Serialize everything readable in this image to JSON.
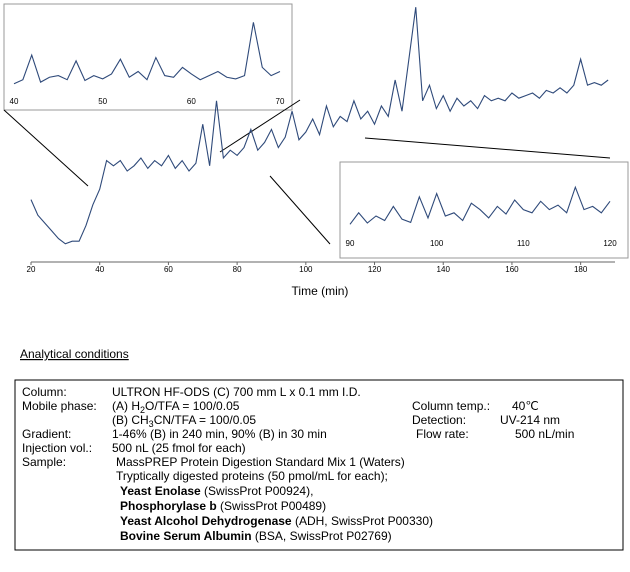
{
  "chart_data": [
    {
      "type": "line",
      "x_label": "Time (min)",
      "color": "#2f4a7a",
      "x": [
        20,
        22,
        24,
        26,
        28,
        30,
        32,
        34,
        36,
        38,
        40,
        42,
        44,
        46,
        48,
        50,
        52,
        54,
        56,
        58,
        60,
        62,
        64,
        66,
        68,
        70,
        72,
        74,
        76,
        78,
        80,
        82,
        84,
        86,
        88,
        90,
        92,
        94,
        96,
        98,
        100,
        102,
        104,
        106,
        108,
        110,
        112,
        114,
        116,
        118,
        120,
        122,
        124,
        126,
        128,
        130,
        132,
        134,
        136,
        138,
        140,
        142,
        144,
        146,
        148,
        150,
        152,
        154,
        156,
        158,
        160,
        162,
        164,
        166,
        168,
        170,
        172,
        174,
        176,
        178,
        180,
        182,
        184,
        186,
        188
      ],
      "values": [
        24,
        18,
        15,
        12,
        9,
        7,
        8,
        8,
        14,
        22,
        28,
        39,
        37,
        39,
        35,
        37,
        40,
        36,
        39,
        37,
        41,
        36,
        39,
        35,
        38,
        53,
        37,
        62,
        40,
        43,
        41,
        44,
        51,
        43,
        46,
        51,
        44,
        48,
        58,
        47,
        50,
        55,
        49,
        60,
        52,
        56,
        54,
        62,
        55,
        58,
        53,
        60,
        56,
        70,
        58,
        78,
        98,
        62,
        68,
        59,
        64,
        58,
        63,
        60,
        62,
        59,
        64,
        62,
        63,
        62,
        65,
        63,
        64,
        65,
        63,
        66,
        65,
        67,
        65,
        68,
        78,
        68,
        69,
        68,
        70
      ],
      "xlim": [
        20,
        190
      ],
      "ylim": [
        0,
        100
      ],
      "xticks": [
        20,
        40,
        60,
        80,
        100,
        120,
        140,
        160,
        180
      ]
    },
    {
      "type": "line",
      "color": "#2f4a7a",
      "x": [
        40,
        41,
        42,
        43,
        44,
        45,
        46,
        47,
        48,
        49,
        50,
        51,
        52,
        53,
        54,
        55,
        56,
        57,
        58,
        59,
        60,
        61,
        62,
        63,
        64,
        65,
        66,
        67,
        68,
        69,
        70
      ],
      "values": [
        10,
        15,
        45,
        12,
        18,
        20,
        15,
        38,
        14,
        20,
        16,
        22,
        40,
        18,
        25,
        15,
        42,
        20,
        18,
        30,
        22,
        15,
        20,
        25,
        18,
        16,
        20,
        85,
        30,
        20,
        25
      ],
      "xlim": [
        40,
        70
      ],
      "ylim": [
        0,
        100
      ],
      "xticks": [
        40,
        50,
        60,
        70
      ]
    },
    {
      "type": "line",
      "color": "#2f4a7a",
      "x": [
        90,
        91,
        92,
        93,
        94,
        95,
        96,
        97,
        98,
        99,
        100,
        101,
        102,
        103,
        104,
        105,
        106,
        107,
        108,
        109,
        110,
        111,
        112,
        113,
        114,
        115,
        116,
        117,
        118,
        119,
        120
      ],
      "values": [
        12,
        30,
        14,
        25,
        18,
        40,
        20,
        15,
        55,
        22,
        60,
        25,
        30,
        18,
        45,
        35,
        22,
        40,
        28,
        50,
        35,
        30,
        48,
        35,
        42,
        30,
        70,
        35,
        40,
        30,
        48
      ],
      "xlim": [
        90,
        120
      ],
      "ylim": [
        0,
        100
      ],
      "xticks": [
        90,
        100,
        110,
        120
      ]
    }
  ],
  "conditions": {
    "title": "Analytical conditions",
    "column_label": "Column:",
    "column": "ULTRON HF-ODS (C) 700 mm L x 0.1 mm I.D.",
    "mobile_phase_label": "Mobile phase:",
    "mobile_a": [
      "(A) H",
      "2",
      "O/TFA = 100/0.05"
    ],
    "mobile_b": [
      "(B) CH",
      "3",
      "CN/TFA = 100/0.05"
    ],
    "column_temp_label": "Column temp.:",
    "column_temp": "40℃",
    "detection_label": "Detection:",
    "detection": "UV-214 nm",
    "gradient_label": "Gradient:",
    "gradient": "1-46% (B) in 240 min, 90% (B) in 30 min",
    "flow_rate_label": "Flow rate:",
    "flow_rate": "500 nL/min",
    "injection_label": "Injection vol.:",
    "injection": "500 nL (25 fmol for each)",
    "sample_label": "Sample:",
    "sample": "MassPREP Protein Digestion Standard Mix 1 (Waters)",
    "sample_note": "Tryptically digested proteins (50 pmol/mL for each);",
    "proteins": [
      {
        "name": "Yeast Enolase",
        "detail": " (SwissProt P00924),"
      },
      {
        "name": "Phosphorylase b",
        "detail": " (SwissProt P00489)"
      },
      {
        "name": "Yeast Alcohol Dehydrogenase",
        "detail": " (ADH, SwissProt P00330)"
      },
      {
        "name": "Bovine Serum Albumin",
        "detail": " (BSA, SwissProt P02769)"
      }
    ]
  }
}
